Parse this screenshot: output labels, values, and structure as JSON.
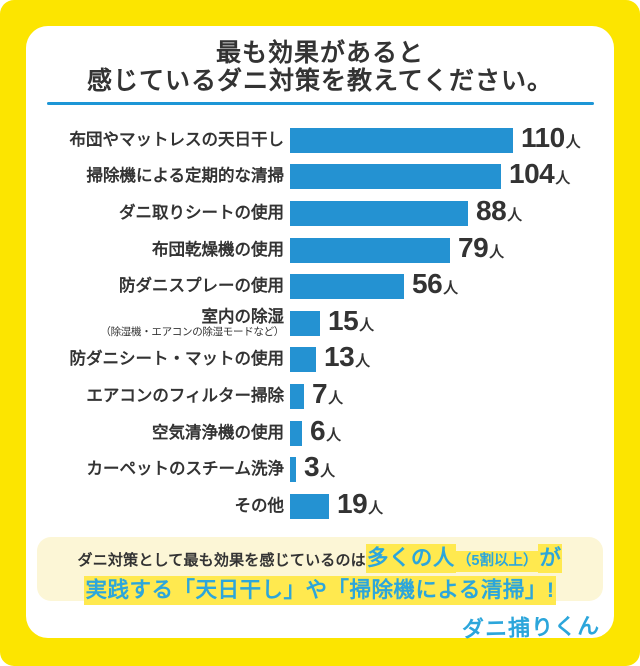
{
  "page": {
    "background_color": "#FCE500",
    "card_color": "#FFFFFF",
    "accent_blue": "#2492D2",
    "text_color": "#333333",
    "highlight_yellow": "#FFE94F",
    "summary_bg": "#FCF6D6",
    "summary_blue": "#2CA6DB"
  },
  "title": {
    "line1": "最も効果があると",
    "line2": "感じているダニ対策を教えてください。"
  },
  "chart_data": {
    "type": "bar",
    "orientation": "horizontal",
    "title": "最も効果があると感じているダニ対策を教えてください。",
    "unit": "人",
    "bar_color": "#2492D2",
    "xlim": [
      0,
      110
    ],
    "grid": false,
    "legend": "none",
    "categories": [
      "布団やマットレスの天日干し",
      "掃除機による定期的な清掃",
      "ダニ取りシートの使用",
      "布団乾燥機の使用",
      "防ダニスプレーの使用",
      "室内の除湿",
      "防ダニシート・マットの使用",
      "エアコンのフィルター掃除",
      "空気清浄機の使用",
      "カーペットのスチーム洗浄",
      "その他"
    ],
    "sublabels": {
      "5": "（除湿機・エアコンの除湿モードなど）"
    },
    "values": [
      110,
      104,
      88,
      79,
      56,
      15,
      13,
      7,
      6,
      3,
      19
    ]
  },
  "summary": {
    "intro": "ダニ対策として最も効果を感じているのは",
    "highlight_main": "多くの人",
    "highlight_paren": "（5割以上）",
    "highlight_suffix": "が",
    "line2": "実践する「天日干し」や「掃除機による清掃」!"
  },
  "logo": {
    "text": "ダニ捕りくん"
  }
}
